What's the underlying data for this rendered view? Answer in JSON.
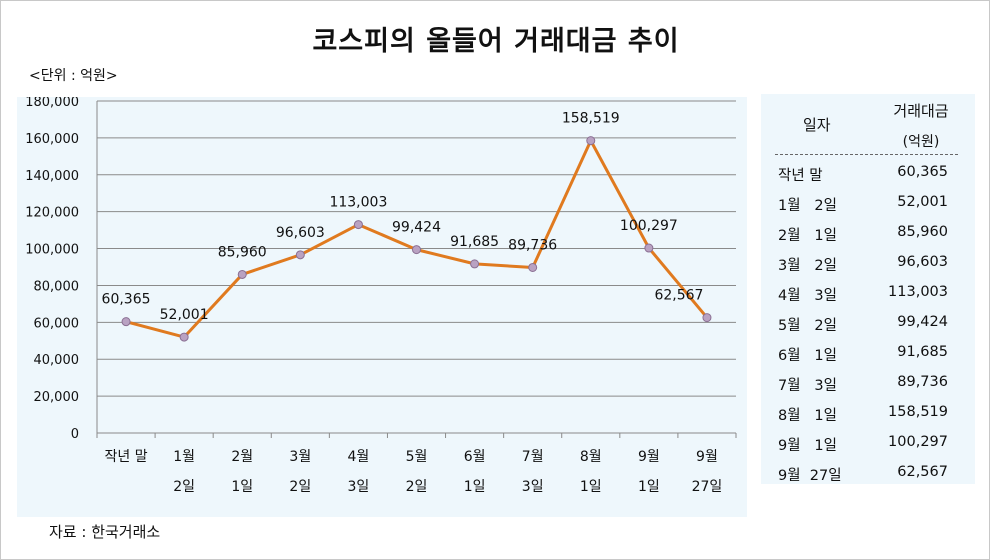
{
  "title": "코스피의 올들어 거래대금 추이",
  "unit_label": "<단위 : 억원>",
  "source": "자료 : 한국거래소",
  "chart_data": {
    "type": "line",
    "categories": [
      [
        "작년 말",
        ""
      ],
      [
        "1월",
        "2일"
      ],
      [
        "2월",
        "1일"
      ],
      [
        "3월",
        "2일"
      ],
      [
        "4월",
        "3일"
      ],
      [
        "5월",
        "2일"
      ],
      [
        "6월",
        "1일"
      ],
      [
        "7월",
        "3일"
      ],
      [
        "8월",
        "1일"
      ],
      [
        "9월",
        "1일"
      ],
      [
        "9월",
        "27일"
      ]
    ],
    "values": [
      60365,
      52001,
      85960,
      96603,
      113003,
      99424,
      91685,
      89736,
      158519,
      100297,
      62567
    ],
    "data_labels": [
      "60,365",
      "52,001",
      "85,960",
      "96,603",
      "113,003",
      "99,424",
      "91,685",
      "89,736",
      "158,519",
      "100,297",
      "62,567"
    ],
    "ylim": [
      0,
      180000
    ],
    "yticks": [
      "0",
      "20,000",
      "40,000",
      "60,000",
      "80,000",
      "100,000",
      "120,000",
      "140,000",
      "160,000",
      "180,000"
    ],
    "grid": true,
    "line_color": "#e07a1f",
    "marker_color": "#b9a2c2"
  },
  "table": {
    "header_date": "일자",
    "header_amount": "거래대금",
    "header_unit": "(억원)",
    "rows": [
      {
        "date": "작년 말",
        "value": "60,365"
      },
      {
        "date": "1월   2일",
        "value": "52,001"
      },
      {
        "date": "2월   1일",
        "value": "85,960"
      },
      {
        "date": "3월   2일",
        "value": "96,603"
      },
      {
        "date": "4월   3일",
        "value": "113,003"
      },
      {
        "date": "5월   2일",
        "value": "99,424"
      },
      {
        "date": "6월   1일",
        "value": "91,685"
      },
      {
        "date": "7월   3일",
        "value": "89,736"
      },
      {
        "date": "8월   1일",
        "value": "158,519"
      },
      {
        "date": "9월   1일",
        "value": "100,297"
      },
      {
        "date": "9월  27일",
        "value": "62,567"
      }
    ]
  }
}
